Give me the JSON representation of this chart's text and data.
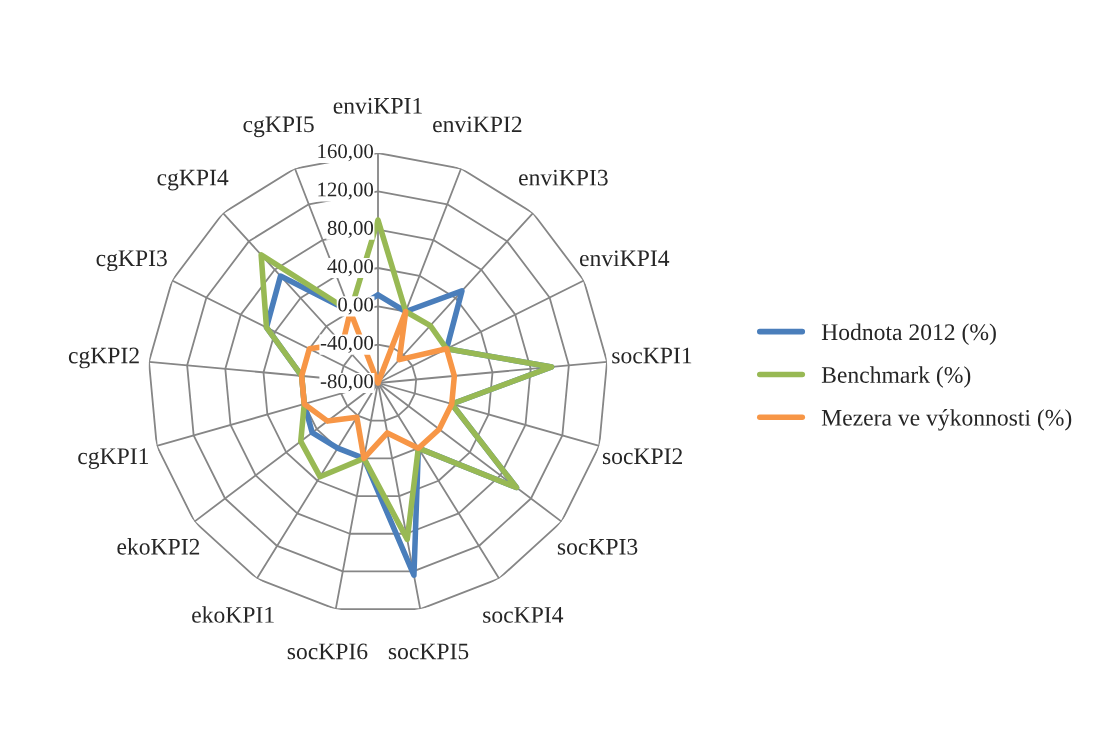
{
  "chart_data": {
    "type": "radar",
    "categories": [
      "enviKPI1",
      "enviKPI2",
      "enviKPI3",
      "enviKPI4",
      "socKPI1",
      "socKPI2",
      "socKPI3",
      "socKPI4",
      "socKPI5",
      "socKPI6",
      "ekoKPI1",
      "ekoKPI2",
      "cgKPI1",
      "cgKPI2",
      "cgKPI3",
      "cgKPI4",
      "cgKPI5"
    ],
    "series": [
      {
        "name": "Hodnota 2012 (%)",
        "color": "#4a7ebb",
        "values": [
          12,
          0,
          50,
          0,
          102,
          0,
          101,
          0,
          124,
          0,
          0,
          6,
          0,
          0,
          50,
          71,
          0
        ]
      },
      {
        "name": "Benchmark (%)",
        "color": "#98b954",
        "values": [
          90,
          0,
          1,
          0,
          102,
          0,
          101,
          0,
          86,
          0,
          35,
          21,
          0,
          0,
          50,
          101,
          0
        ]
      },
      {
        "name": "Mezera ve výkonnosti (%)",
        "color": "#f79646",
        "values": [
          -80,
          0,
          -47,
          0,
          0,
          0,
          0,
          0,
          -27,
          0,
          -38,
          -14,
          0,
          0,
          0,
          -25,
          0
        ]
      }
    ],
    "ylim": [
      -80,
      160
    ],
    "yticks": [
      {
        "value": -80,
        "label": "-80,00"
      },
      {
        "value": -40,
        "label": "-40,00"
      },
      {
        "value": 0,
        "label": "0,00"
      },
      {
        "value": 40,
        "label": "40,00"
      },
      {
        "value": 80,
        "label": "80,00"
      },
      {
        "value": 120,
        "label": "120,00"
      },
      {
        "value": 160,
        "label": "160,00"
      }
    ],
    "grid": true,
    "legend": "right",
    "marker": "none"
  }
}
